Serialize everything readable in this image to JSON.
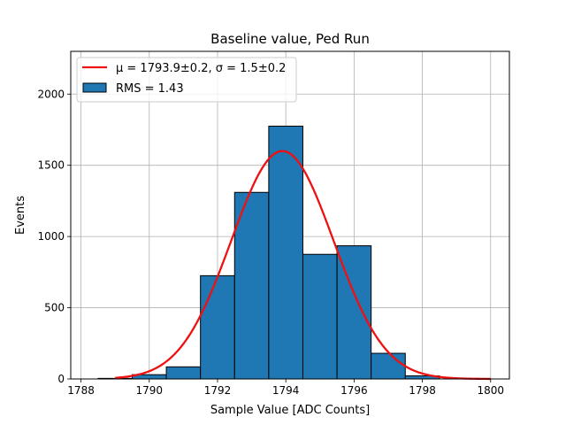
{
  "chart_data": {
    "type": "bar",
    "title": "Baseline value, Ped Run",
    "xlabel": "Sample Value [ADC Counts]",
    "ylabel": "Events",
    "xlim": [
      1787.7,
      1800.55
    ],
    "ylim": [
      0,
      2300
    ],
    "xticks": [
      1788,
      1790,
      1792,
      1794,
      1796,
      1798,
      1800
    ],
    "yticks": [
      0,
      500,
      1000,
      1500,
      2000
    ],
    "grid": true,
    "legend_position": "top-left",
    "bin_edges": [
      1788.5,
      1789.5,
      1790.5,
      1791.5,
      1792.5,
      1793.5,
      1794.5,
      1795.5,
      1796.5,
      1797.5,
      1798.5
    ],
    "counts": [
      4,
      30,
      85,
      725,
      1310,
      1775,
      875,
      935,
      180,
      22
    ],
    "histogram_label": "RMS = 1.43",
    "fit": {
      "mu": 1793.9,
      "sigma": 1.5,
      "amplitude": 1600,
      "x_range": [
        1789,
        1800
      ],
      "label": "μ = 1793.9±0.2, σ = 1.5±0.2"
    },
    "colors": {
      "bar": "#1f77b4",
      "bar_edge": "#000000",
      "fit": "#ee1111",
      "grid": "#b0b0b0"
    }
  }
}
